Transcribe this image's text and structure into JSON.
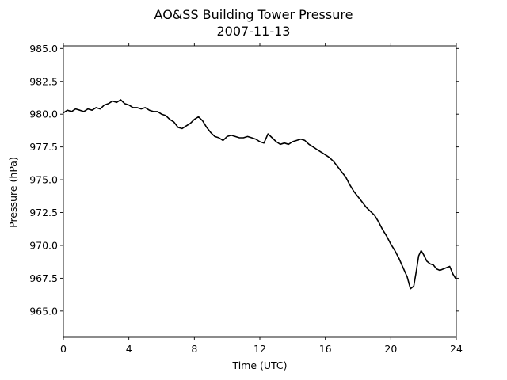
{
  "chart_data": {
    "type": "line",
    "title": "AO&SS Building Tower Pressure",
    "subtitle": "2007-11-13",
    "xlabel": "Time (UTC)",
    "ylabel": "Pressure (hPa)",
    "xlim": [
      0,
      24
    ],
    "ylim": [
      963.0,
      985.2
    ],
    "xticks": [
      0,
      4,
      8,
      12,
      16,
      20,
      24
    ],
    "yticks": [
      965.0,
      967.5,
      970.0,
      972.5,
      975.0,
      977.5,
      980.0,
      982.5,
      985.0
    ],
    "ytick_labels": [
      "965.0",
      "967.5",
      "970.0",
      "972.5",
      "975.0",
      "977.5",
      "980.0",
      "982.5",
      "985.0"
    ],
    "grid": false,
    "legend": "none",
    "series_color": "#000000",
    "series": [
      {
        "x": [
          0,
          0.25,
          0.5,
          0.75,
          1.0,
          1.25,
          1.5,
          1.75,
          2.0,
          2.25,
          2.5,
          2.75,
          3.0,
          3.25,
          3.5,
          3.75,
          4.0,
          4.25,
          4.5,
          4.75,
          5.0,
          5.25,
          5.5,
          5.75,
          6.0,
          6.25,
          6.5,
          6.75,
          7.0,
          7.25,
          7.5,
          7.75,
          8.0,
          8.25,
          8.5,
          8.75,
          9.0,
          9.25,
          9.5,
          9.75,
          10.0,
          10.25,
          10.5,
          10.75,
          11.0,
          11.25,
          11.5,
          11.75,
          12.0,
          12.25,
          12.5,
          12.75,
          13.0,
          13.25,
          13.5,
          13.75,
          14.0,
          14.25,
          14.5,
          14.75,
          15.0,
          15.25,
          15.5,
          15.75,
          16.0,
          16.25,
          16.5,
          16.75,
          17.0,
          17.25,
          17.5,
          17.75,
          18.0,
          18.25,
          18.5,
          18.75,
          19.0,
          19.25,
          19.5,
          19.75,
          20.0,
          20.25,
          20.5,
          20.75,
          21.0,
          21.2,
          21.4,
          21.55,
          21.7,
          21.85,
          22.0,
          22.2,
          22.4,
          22.6,
          22.8,
          23.0,
          23.2,
          23.4,
          23.6,
          23.8,
          24.0
        ],
        "y": [
          980.1,
          980.3,
          980.2,
          980.4,
          980.3,
          980.2,
          980.4,
          980.3,
          980.5,
          980.4,
          980.7,
          980.8,
          981.0,
          980.9,
          981.1,
          980.8,
          980.7,
          980.5,
          980.5,
          980.4,
          980.5,
          980.3,
          980.2,
          980.2,
          980.0,
          979.9,
          979.6,
          979.4,
          979.0,
          978.9,
          979.1,
          979.3,
          979.6,
          979.8,
          979.5,
          979.0,
          978.6,
          978.3,
          978.2,
          978.0,
          978.3,
          978.4,
          978.3,
          978.2,
          978.2,
          978.3,
          978.2,
          978.1,
          977.9,
          977.8,
          978.5,
          978.2,
          977.9,
          977.7,
          977.8,
          977.7,
          977.9,
          978.0,
          978.1,
          978.0,
          977.7,
          977.5,
          977.3,
          977.1,
          976.9,
          976.7,
          976.4,
          976.0,
          975.6,
          975.2,
          974.6,
          974.1,
          973.7,
          973.3,
          972.9,
          972.6,
          972.3,
          971.8,
          971.2,
          970.7,
          970.1,
          969.6,
          969.0,
          968.3,
          967.6,
          966.7,
          966.9,
          968.0,
          969.2,
          969.6,
          969.3,
          968.8,
          968.6,
          968.5,
          968.2,
          968.1,
          968.2,
          968.3,
          968.4,
          967.8,
          967.4
        ]
      }
    ]
  }
}
